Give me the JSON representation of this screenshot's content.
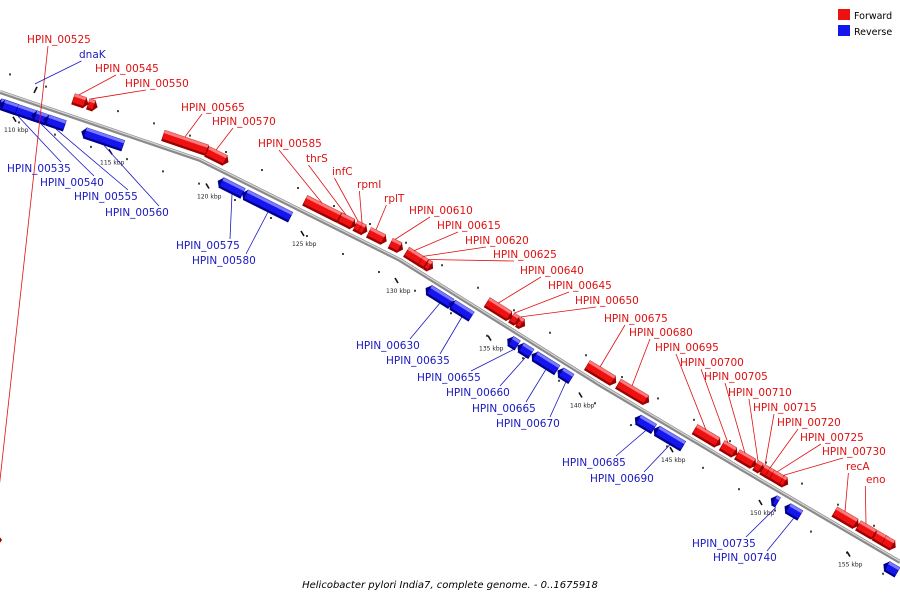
{
  "caption": "Helicobacter pylori India7, complete genome. - 0..1675918",
  "legend": {
    "forward_label": "Forward",
    "reverse_label": "Reverse",
    "forward_color": "#ee1111",
    "reverse_color": "#1515ee"
  },
  "ticks": [
    "110 kbp",
    "115 kbp",
    "120 kbp",
    "125 kbp",
    "130 kbp",
    "135 kbp",
    "140 kbp",
    "145 kbp",
    "150 kbp",
    "155 kbp"
  ],
  "genes": [
    {
      "name": "HPIN_00525",
      "strand": "forward"
    },
    {
      "name": "dnaK",
      "strand": "reverse"
    },
    {
      "name": "HPIN_00545",
      "strand": "forward"
    },
    {
      "name": "HPIN_00550",
      "strand": "forward"
    },
    {
      "name": "HPIN_00535",
      "strand": "reverse"
    },
    {
      "name": "HPIN_00540",
      "strand": "reverse"
    },
    {
      "name": "HPIN_00555",
      "strand": "reverse"
    },
    {
      "name": "HPIN_00560",
      "strand": "reverse"
    },
    {
      "name": "HPIN_00565",
      "strand": "forward"
    },
    {
      "name": "HPIN_00570",
      "strand": "forward"
    },
    {
      "name": "HPIN_00575",
      "strand": "reverse"
    },
    {
      "name": "HPIN_00580",
      "strand": "reverse"
    },
    {
      "name": "HPIN_00585",
      "strand": "forward"
    },
    {
      "name": "thrS",
      "strand": "forward"
    },
    {
      "name": "infC",
      "strand": "forward"
    },
    {
      "name": "rpmI",
      "strand": "forward"
    },
    {
      "name": "rplT",
      "strand": "forward"
    },
    {
      "name": "HPIN_00610",
      "strand": "forward"
    },
    {
      "name": "HPIN_00615",
      "strand": "forward"
    },
    {
      "name": "HPIN_00620",
      "strand": "forward"
    },
    {
      "name": "HPIN_00625",
      "strand": "forward"
    },
    {
      "name": "HPIN_00640",
      "strand": "forward"
    },
    {
      "name": "HPIN_00645",
      "strand": "forward"
    },
    {
      "name": "HPIN_00650",
      "strand": "forward"
    },
    {
      "name": "HPIN_00630",
      "strand": "reverse"
    },
    {
      "name": "HPIN_00635",
      "strand": "reverse"
    },
    {
      "name": "HPIN_00655",
      "strand": "reverse"
    },
    {
      "name": "HPIN_00660",
      "strand": "reverse"
    },
    {
      "name": "HPIN_00665",
      "strand": "reverse"
    },
    {
      "name": "HPIN_00670",
      "strand": "reverse"
    },
    {
      "name": "HPIN_00675",
      "strand": "forward"
    },
    {
      "name": "HPIN_00680",
      "strand": "forward"
    },
    {
      "name": "HPIN_00695",
      "strand": "forward"
    },
    {
      "name": "HPIN_00700",
      "strand": "forward"
    },
    {
      "name": "HPIN_00705",
      "strand": "forward"
    },
    {
      "name": "HPIN_00710",
      "strand": "forward"
    },
    {
      "name": "HPIN_00715",
      "strand": "forward"
    },
    {
      "name": "HPIN_00720",
      "strand": "forward"
    },
    {
      "name": "HPIN_00725",
      "strand": "forward"
    },
    {
      "name": "HPIN_00730",
      "strand": "forward"
    },
    {
      "name": "recA",
      "strand": "forward"
    },
    {
      "name": "eno",
      "strand": "forward"
    },
    {
      "name": "HPIN_00685",
      "strand": "reverse"
    },
    {
      "name": "HPIN_00690",
      "strand": "reverse"
    },
    {
      "name": "HPIN_00735",
      "strand": "reverse"
    },
    {
      "name": "HPIN_00740",
      "strand": "reverse"
    }
  ]
}
